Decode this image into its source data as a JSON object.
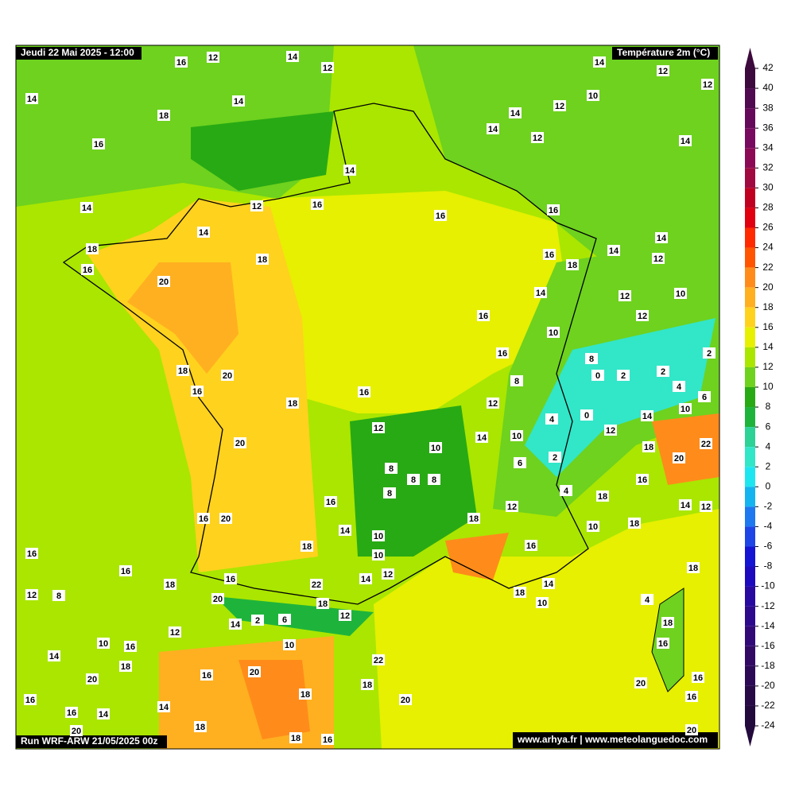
{
  "header": {
    "date": "Jeudi 22 Mai 2025 - 12:00",
    "variable": "Température 2m (°C)",
    "run": "Run WRF-ARW 21/05/2025 00z",
    "source": "www.arhya.fr | www.meteolanguedoc.com"
  },
  "map": {
    "labels": [
      16,
      12,
      14,
      12,
      14,
      12,
      12,
      14,
      14,
      10,
      12,
      18,
      14,
      14,
      12,
      16,
      14,
      14,
      14,
      12,
      16,
      16,
      16,
      14,
      14,
      18,
      18,
      16,
      14,
      12,
      16,
      18,
      20,
      14,
      12,
      10,
      16,
      12,
      10,
      16,
      8,
      2,
      18,
      20,
      0,
      2,
      2,
      8,
      4,
      16,
      16,
      6,
      18,
      12,
      4,
      0,
      14,
      10,
      12,
      12,
      14,
      10,
      10,
      20,
      18,
      22,
      20,
      2,
      6,
      8,
      8,
      8,
      16,
      8,
      4,
      18,
      16,
      14,
      12,
      12,
      16,
      20,
      18,
      14,
      10,
      18,
      10,
      18,
      16,
      16,
      10,
      16,
      18,
      18,
      16,
      12,
      14,
      22,
      14,
      12,
      8,
      20,
      18,
      10,
      18,
      4,
      2,
      6,
      12,
      14,
      18,
      12,
      10,
      16,
      10,
      16,
      14,
      18,
      22,
      20,
      16,
      20,
      16,
      18,
      20,
      18,
      16,
      20,
      16,
      14,
      16,
      14,
      18,
      20,
      20,
      18,
      16
    ]
  },
  "colorbar": {
    "ticks": [
      42,
      40,
      38,
      36,
      34,
      32,
      30,
      28,
      26,
      24,
      22,
      20,
      18,
      16,
      14,
      12,
      10,
      8,
      6,
      4,
      2,
      0,
      -2,
      -4,
      -6,
      -8,
      -10,
      -12,
      -14,
      -16,
      -18,
      -20,
      -22,
      -24
    ],
    "colors": [
      "#3d0a3d",
      "#500a50",
      "#650a5a",
      "#780a60",
      "#8c0a55",
      "#a00a40",
      "#c00020",
      "#e00010",
      "#ff2a00",
      "#ff5500",
      "#ff8c1a",
      "#ffb020",
      "#ffd21e",
      "#e6f000",
      "#aae600",
      "#6ed21e",
      "#28aa14",
      "#1eb43c",
      "#2dd296",
      "#32e6c8",
      "#1ee6f0",
      "#14b4f0",
      "#1e78f0",
      "#1e46e6",
      "#1414d2",
      "#1e0abe",
      "#280aa0",
      "#2d0a8c",
      "#320a78",
      "#320a64",
      "#2d0a55",
      "#280a46",
      "#230a3c"
    ]
  }
}
